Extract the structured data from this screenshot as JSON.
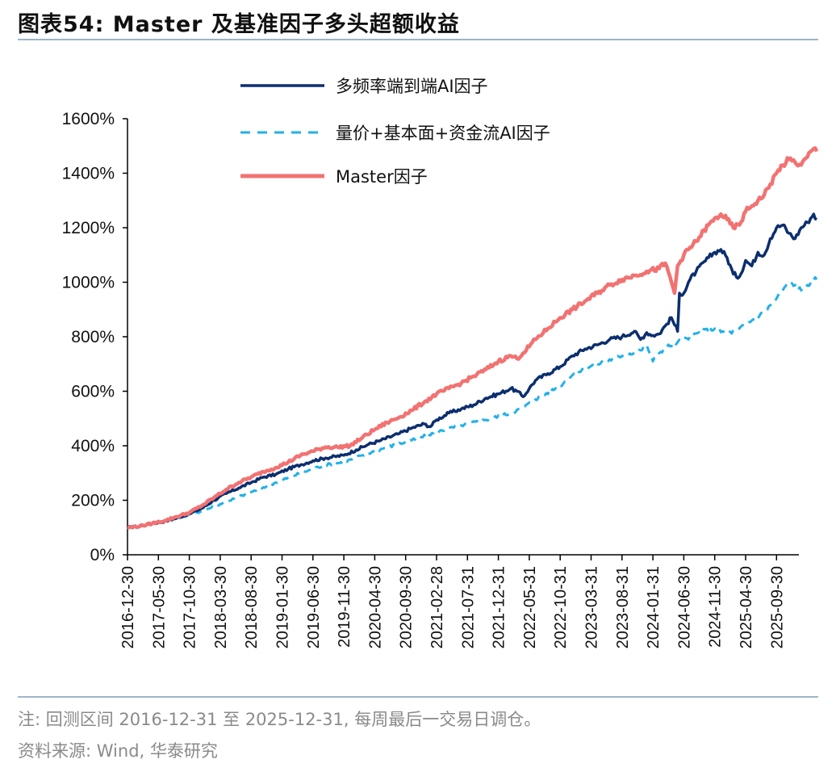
{
  "header": {
    "title": "图表54:  Master 及基准因子多头超额收益"
  },
  "chart_data": {
    "type": "line",
    "title": "Master 及基准因子多头超额收益",
    "ylabel": "",
    "xlabel": "",
    "ylim": [
      0,
      1600
    ],
    "y_tick_labels": [
      "0%",
      "200%",
      "400%",
      "600%",
      "800%",
      "1000%",
      "1200%",
      "1400%",
      "1600%"
    ],
    "y_ticks": [
      0,
      200,
      400,
      600,
      800,
      1000,
      1200,
      1400,
      1600
    ],
    "x_tick_labels": [
      "2016-12-30",
      "2017-05-30",
      "2017-10-30",
      "2018-03-30",
      "2018-08-30",
      "2019-01-30",
      "2019-06-30",
      "2019-11-30",
      "2020-04-30",
      "2020-09-30",
      "2021-02-28",
      "2021-07-31",
      "2021-12-31",
      "2022-05-31",
      "2022-10-31",
      "2023-03-31",
      "2023-08-31",
      "2024-01-31",
      "2024-06-30",
      "2024-11-30",
      "2025-04-30",
      "2025-09-30"
    ],
    "x_range_months": [
      0,
      108
    ],
    "legend_position": "top-left",
    "series": [
      {
        "name": "多频率端到端AI因子",
        "color": "#0b2e6e",
        "style": "solid",
        "points": [
          [
            0,
            100
          ],
          [
            2,
            105
          ],
          [
            4,
            115
          ],
          [
            6,
            122
          ],
          [
            8,
            135
          ],
          [
            10,
            150
          ],
          [
            12,
            170
          ],
          [
            14,
            200
          ],
          [
            16,
            225
          ],
          [
            18,
            245
          ],
          [
            20,
            265
          ],
          [
            22,
            285
          ],
          [
            24,
            295
          ],
          [
            26,
            315
          ],
          [
            28,
            330
          ],
          [
            30,
            345
          ],
          [
            32,
            355
          ],
          [
            35,
            365
          ],
          [
            37,
            385
          ],
          [
            39,
            405
          ],
          [
            41,
            420
          ],
          [
            44,
            445
          ],
          [
            46,
            465
          ],
          [
            48,
            480
          ],
          [
            49,
            470
          ],
          [
            50,
            495
          ],
          [
            52,
            520
          ],
          [
            54,
            535
          ],
          [
            56,
            550
          ],
          [
            58,
            575
          ],
          [
            60,
            590
          ],
          [
            62,
            610
          ],
          [
            63,
            600
          ],
          [
            64,
            580
          ],
          [
            65,
            610
          ],
          [
            66,
            640
          ],
          [
            68,
            665
          ],
          [
            70,
            690
          ],
          [
            72,
            730
          ],
          [
            74,
            755
          ],
          [
            76,
            770
          ],
          [
            78,
            790
          ],
          [
            80,
            800
          ],
          [
            82,
            820
          ],
          [
            83,
            790
          ],
          [
            84,
            815
          ],
          [
            85,
            805
          ],
          [
            86,
            810
          ],
          [
            87,
            840
          ],
          [
            88,
            870
          ],
          [
            89,
            820
          ],
          [
            89.3,
            960
          ],
          [
            90,
            960
          ],
          [
            91,
            1010
          ],
          [
            92,
            1040
          ],
          [
            94,
            1090
          ],
          [
            95,
            1110
          ],
          [
            96,
            1120
          ],
          [
            97,
            1090
          ],
          [
            98,
            1030
          ],
          [
            99,
            1020
          ],
          [
            100,
            1080
          ],
          [
            101,
            1060
          ],
          [
            102,
            1110
          ],
          [
            103,
            1100
          ],
          [
            104,
            1160
          ],
          [
            105,
            1200
          ],
          [
            106,
            1210
          ],
          [
            107,
            1180
          ],
          [
            108,
            1160
          ],
          [
            109,
            1200
          ],
          [
            110,
            1220
          ],
          [
            111,
            1250
          ],
          [
            111.5,
            1230
          ]
        ]
      },
      {
        "name": "量价+基本面+资金流AI因子",
        "color": "#22b0ea",
        "style": "dashed",
        "points": [
          [
            0,
            100
          ],
          [
            4,
            115
          ],
          [
            8,
            135
          ],
          [
            12,
            160
          ],
          [
            16,
            195
          ],
          [
            20,
            230
          ],
          [
            24,
            265
          ],
          [
            28,
            300
          ],
          [
            32,
            330
          ],
          [
            35,
            340
          ],
          [
            38,
            365
          ],
          [
            42,
            395
          ],
          [
            46,
            420
          ],
          [
            50,
            450
          ],
          [
            54,
            475
          ],
          [
            58,
            495
          ],
          [
            62,
            520
          ],
          [
            64,
            540
          ],
          [
            66,
            570
          ],
          [
            70,
            620
          ],
          [
            72,
            660
          ],
          [
            74,
            685
          ],
          [
            76,
            700
          ],
          [
            80,
            730
          ],
          [
            83,
            750
          ],
          [
            84,
            770
          ],
          [
            85,
            710
          ],
          [
            86,
            740
          ],
          [
            87,
            760
          ],
          [
            89,
            780
          ],
          [
            91,
            800
          ],
          [
            93,
            820
          ],
          [
            95,
            830
          ],
          [
            97,
            810
          ],
          [
            99,
            830
          ],
          [
            101,
            860
          ],
          [
            103,
            890
          ],
          [
            105,
            940
          ],
          [
            106,
            970
          ],
          [
            107,
            1000
          ],
          [
            108,
            990
          ],
          [
            109,
            970
          ],
          [
            110,
            990
          ],
          [
            111,
            1010
          ],
          [
            111.5,
            1010
          ]
        ]
      },
      {
        "name": "Master因子",
        "color": "#f27272",
        "style": "solid",
        "points": [
          [
            0,
            100
          ],
          [
            2,
            105
          ],
          [
            4,
            115
          ],
          [
            6,
            125
          ],
          [
            8,
            140
          ],
          [
            10,
            155
          ],
          [
            12,
            180
          ],
          [
            14,
            210
          ],
          [
            16,
            240
          ],
          [
            18,
            265
          ],
          [
            20,
            285
          ],
          [
            22,
            305
          ],
          [
            24,
            320
          ],
          [
            26,
            340
          ],
          [
            28,
            365
          ],
          [
            30,
            380
          ],
          [
            32,
            395
          ],
          [
            34,
            395
          ],
          [
            36,
            400
          ],
          [
            38,
            430
          ],
          [
            40,
            460
          ],
          [
            42,
            485
          ],
          [
            44,
            505
          ],
          [
            46,
            530
          ],
          [
            48,
            560
          ],
          [
            50,
            590
          ],
          [
            52,
            610
          ],
          [
            54,
            630
          ],
          [
            56,
            655
          ],
          [
            58,
            680
          ],
          [
            60,
            710
          ],
          [
            62,
            730
          ],
          [
            63,
            720
          ],
          [
            64,
            740
          ],
          [
            66,
            790
          ],
          [
            68,
            830
          ],
          [
            70,
            870
          ],
          [
            72,
            900
          ],
          [
            74,
            930
          ],
          [
            76,
            960
          ],
          [
            78,
            990
          ],
          [
            80,
            1010
          ],
          [
            82,
            1025
          ],
          [
            84,
            1040
          ],
          [
            86,
            1050
          ],
          [
            87,
            1070
          ],
          [
            88,
            1000
          ],
          [
            88.5,
            960
          ],
          [
            89,
            1060
          ],
          [
            90,
            1100
          ],
          [
            92,
            1150
          ],
          [
            94,
            1210
          ],
          [
            96,
            1250
          ],
          [
            97,
            1230
          ],
          [
            98,
            1200
          ],
          [
            99,
            1210
          ],
          [
            100,
            1260
          ],
          [
            101,
            1280
          ],
          [
            102,
            1300
          ],
          [
            103,
            1320
          ],
          [
            104,
            1360
          ],
          [
            105,
            1400
          ],
          [
            106,
            1430
          ],
          [
            107,
            1450
          ],
          [
            108,
            1440
          ],
          [
            109,
            1430
          ],
          [
            110,
            1460
          ],
          [
            111,
            1490
          ],
          [
            111.5,
            1480
          ]
        ]
      }
    ]
  },
  "footer": {
    "note": "注:  回测区间 2016-12-31 至 2025-12-31,  每周最后一交易日调仓。",
    "source": "资料来源:  Wind,  华泰研究"
  }
}
